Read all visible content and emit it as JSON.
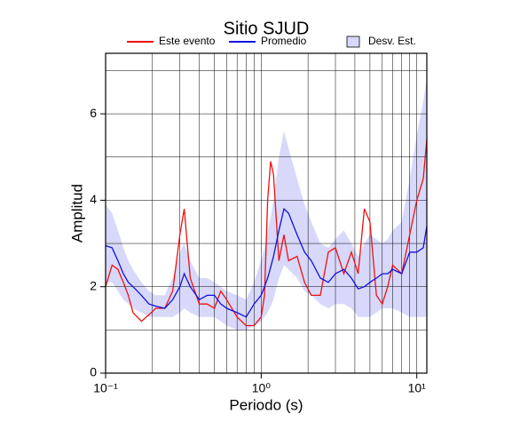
{
  "chart_data": {
    "type": "line",
    "title": "Sitio SJUD",
    "xlabel": "Periodo (s)",
    "ylabel": "Amplitud",
    "xscale": "log",
    "grid": true,
    "xlim": [
      0.1,
      11.6
    ],
    "ylim": [
      0,
      7.4
    ],
    "xticks": [
      {
        "value": 0.1,
        "label": "10⁻¹"
      },
      {
        "value": 1,
        "label": "10⁰"
      },
      {
        "value": 10,
        "label": "10¹"
      }
    ],
    "xgrid": [
      0.2,
      0.3,
      0.4,
      0.5,
      0.6,
      0.7,
      0.8,
      0.9,
      1,
      2,
      3,
      4,
      5,
      6,
      7,
      8,
      9,
      10
    ],
    "yticks": [
      0,
      2,
      4,
      6
    ],
    "ygrid": [
      1,
      2,
      3,
      4,
      5,
      6,
      7
    ],
    "x": [
      0.1,
      0.11,
      0.12,
      0.13,
      0.14,
      0.15,
      0.17,
      0.19,
      0.21,
      0.24,
      0.27,
      0.3,
      0.32,
      0.35,
      0.4,
      0.45,
      0.5,
      0.55,
      0.6,
      0.7,
      0.8,
      0.9,
      1.0,
      1.05,
      1.1,
      1.15,
      1.2,
      1.3,
      1.4,
      1.5,
      1.7,
      1.9,
      2.1,
      2.4,
      2.7,
      3.0,
      3.4,
      3.8,
      4.2,
      4.6,
      5.0,
      5.5,
      6,
      6.5,
      7,
      8,
      9,
      10,
      11,
      11.6
    ],
    "series": [
      {
        "name": "Este evento",
        "color": "#ee1111",
        "values": [
          2.0,
          2.5,
          2.4,
          2.1,
          1.8,
          1.4,
          1.2,
          1.35,
          1.5,
          1.5,
          1.9,
          3.2,
          3.8,
          2.2,
          1.6,
          1.6,
          1.5,
          1.9,
          1.7,
          1.3,
          1.1,
          1.1,
          1.3,
          1.8,
          4.0,
          4.9,
          4.6,
          2.6,
          3.2,
          2.6,
          2.7,
          2.1,
          1.8,
          1.8,
          2.8,
          2.9,
          2.3,
          2.8,
          2.3,
          3.8,
          3.5,
          1.8,
          1.6,
          2.0,
          2.5,
          2.3,
          3.2,
          4.0,
          4.5,
          5.4
        ]
      },
      {
        "name": "Promedio",
        "color": "#1111dd",
        "values": [
          2.95,
          2.9,
          2.6,
          2.3,
          2.1,
          2.0,
          1.8,
          1.6,
          1.55,
          1.5,
          1.7,
          2.0,
          2.3,
          2.0,
          1.7,
          1.8,
          1.8,
          1.6,
          1.5,
          1.4,
          1.3,
          1.6,
          1.8,
          2.0,
          2.2,
          2.45,
          2.7,
          3.3,
          3.8,
          3.7,
          3.2,
          2.8,
          2.6,
          2.2,
          2.1,
          2.3,
          2.4,
          2.2,
          1.95,
          2.0,
          2.1,
          2.2,
          2.3,
          2.3,
          2.4,
          2.3,
          2.8,
          2.8,
          2.9,
          3.4
        ]
      },
      {
        "name": "Desv. Est.",
        "color": "#d8d8fa",
        "upper": [
          3.9,
          3.7,
          3.3,
          2.9,
          2.6,
          2.4,
          2.1,
          1.9,
          1.8,
          1.8,
          2.2,
          2.8,
          3.0,
          2.6,
          2.2,
          2.2,
          2.1,
          2.0,
          1.9,
          1.8,
          1.7,
          2.1,
          2.6,
          2.9,
          3.3,
          3.6,
          4.0,
          5.0,
          5.6,
          5.2,
          4.5,
          3.9,
          3.5,
          3.0,
          2.9,
          3.1,
          3.3,
          3.0,
          2.7,
          3.0,
          3.2,
          3.1,
          3.0,
          3.1,
          3.3,
          3.5,
          4.5,
          5.5,
          6.3,
          6.8
        ],
        "lower": [
          2.1,
          2.1,
          1.9,
          1.7,
          1.6,
          1.5,
          1.4,
          1.3,
          1.3,
          1.3,
          1.3,
          1.4,
          1.5,
          1.4,
          1.3,
          1.3,
          1.3,
          1.2,
          1.1,
          1.0,
          1.0,
          1.1,
          1.2,
          1.3,
          1.4,
          1.55,
          1.7,
          2.2,
          2.5,
          2.4,
          2.2,
          1.9,
          1.8,
          1.6,
          1.5,
          1.6,
          1.6,
          1.5,
          1.3,
          1.3,
          1.3,
          1.4,
          1.5,
          1.5,
          1.5,
          1.4,
          1.3,
          1.3,
          1.3,
          1.3
        ]
      }
    ]
  }
}
